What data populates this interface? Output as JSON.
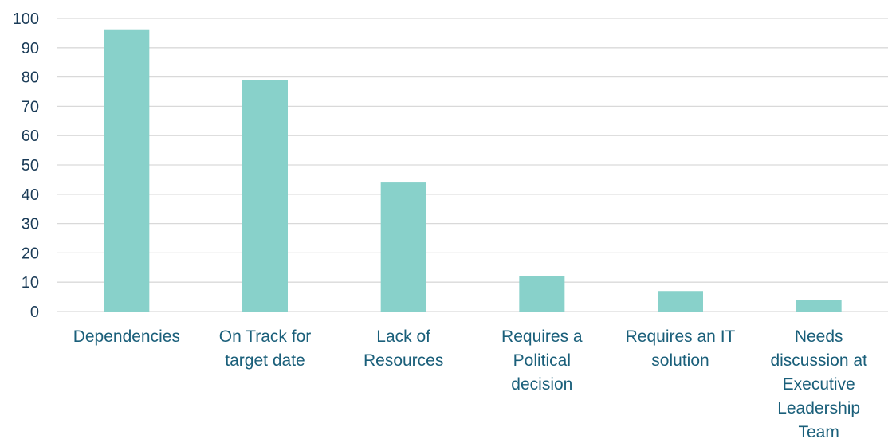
{
  "chart_data": {
    "type": "bar",
    "title": "",
    "xlabel": "",
    "ylabel": "",
    "ylim": [
      0,
      100
    ],
    "yticks": [
      0,
      10,
      20,
      30,
      40,
      50,
      60,
      70,
      80,
      90,
      100
    ],
    "grid": true,
    "legend": "none",
    "bar_color": "#88d1ca",
    "categories": [
      "Dependencies",
      "On Track for target date",
      "Lack of Resources",
      "Requires a Political decision",
      "Requires an IT solution",
      "Needs discussion at Executive Leadership Team"
    ],
    "category_lines": [
      [
        "Dependencies"
      ],
      [
        "On Track for",
        "target date"
      ],
      [
        "Lack of",
        "Resources"
      ],
      [
        "Requires a",
        "Political",
        "decision"
      ],
      [
        "Requires an IT",
        "solution"
      ],
      [
        "Needs",
        "discussion at",
        "Executive",
        "Leadership",
        "Team"
      ]
    ],
    "values": [
      96,
      79,
      44,
      12,
      7,
      4
    ]
  }
}
